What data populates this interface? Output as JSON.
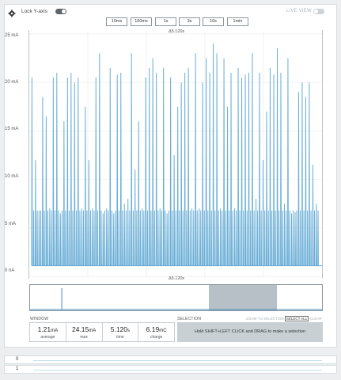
{
  "header": {
    "lock_label": "Lock Y-axis",
    "lock_enabled": true,
    "live_label": "LIVE VIEW",
    "live_enabled": false
  },
  "window_buttons": [
    "10ms",
    "100ms",
    "1s",
    "3s",
    "10s",
    "1min"
  ],
  "chart": {
    "top_time_label": "Δ5.120s",
    "bottom_time_label": "Δ5.120s",
    "y_ticks": [
      "25 mA",
      "20 mA",
      "15 mA",
      "10 mA",
      "5 mA",
      "0 nA"
    ],
    "line_color": "#6aaed6"
  },
  "chart_data": {
    "type": "line",
    "x_unit": "s",
    "x_range": [
      0,
      5.12
    ],
    "ylim": [
      0,
      25
    ],
    "y_unit": "mA",
    "grid": true,
    "baseline": 1.1,
    "floor_level": 6.8,
    "spike_peaks_mA": [
      20.5,
      12,
      6.8,
      18.5,
      16.5,
      7,
      20.5,
      21,
      6.5,
      16,
      20.5,
      21,
      20,
      20.5,
      7,
      17.5,
      12,
      7,
      20.5,
      23,
      6.5,
      7,
      21.5,
      6.5,
      20.8,
      21,
      7.5,
      8,
      23,
      11,
      16,
      7,
      20.5,
      21.5,
      22.5,
      21,
      7,
      21.5,
      6.5,
      20.5,
      12.5,
      17.5,
      20,
      21,
      21.5,
      7,
      23,
      7,
      20,
      22.5,
      21,
      24,
      23,
      7,
      22.5,
      17.5,
      21,
      7,
      21.5,
      20.5,
      20.8,
      21,
      23,
      8,
      21,
      12,
      17,
      21.5,
      20.8,
      23.5,
      21,
      7.5,
      22.5,
      6.5,
      6.6,
      19,
      20,
      18.5,
      20,
      11.5,
      7.5
    ]
  },
  "minimap": {
    "selection_start_fraction": 0.61,
    "selection_end_fraction": 0.84,
    "spike_position_fraction": 0.108
  },
  "selection": {
    "window_header": "WINDOW",
    "selection_header": "SELECTION",
    "zoom_label": "ZOOM TO SELECTION",
    "select_all_label": "SELECT ALL",
    "clear_label": "CLEAR",
    "hint": "Hold SHIFT+LEFT CLICK and DRAG to make a selection"
  },
  "stats": [
    {
      "value": "1.21",
      "unit": "mA",
      "label": "average"
    },
    {
      "value": "24.15",
      "unit": "mA",
      "label": "max"
    },
    {
      "value": "5.120",
      "unit": "s",
      "label": "time"
    },
    {
      "value": "6.19",
      "unit": "mC",
      "label": "charge"
    }
  ],
  "digital_channels": [
    "0",
    "1"
  ]
}
